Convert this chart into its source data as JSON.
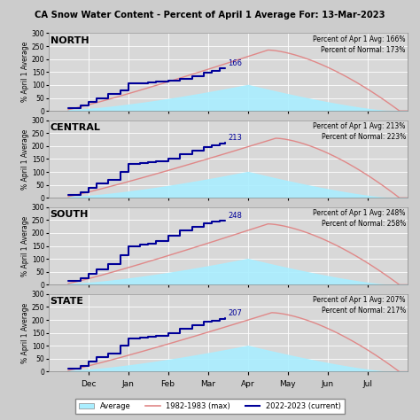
{
  "title": "CA Snow Water Content - Percent of April 1 Average For: 13-Mar-2023",
  "panels": [
    {
      "label": "NORTH",
      "apr1_avg": "166%",
      "normal": "173%",
      "current_value": 166
    },
    {
      "label": "CENTRAL",
      "apr1_avg": "213%",
      "normal": "223%",
      "current_value": 213
    },
    {
      "label": "SOUTH",
      "apr1_avg": "248%",
      "normal": "258%",
      "current_value": 248
    },
    {
      "label": "STATE",
      "apr1_avg": "207%",
      "normal": "217%",
      "current_value": 207
    }
  ],
  "bg_color": "#d8d8d8",
  "plot_bg_color": "#d4d4d4",
  "fill_color": "#aaeeff",
  "max_line_color": "#e08888",
  "current_line_color": "#000099",
  "ylabel": "% April 1 Average",
  "yticks": [
    0,
    50,
    100,
    150,
    200,
    250,
    300
  ],
  "ylim": [
    0,
    300
  ],
  "months": [
    "Dec",
    "Jan",
    "Feb",
    "Mar",
    "Apr",
    "May",
    "Jun",
    "Jul"
  ],
  "month_positions": [
    1,
    2,
    3,
    4,
    5,
    6,
    7,
    8
  ],
  "xlim": [
    0,
    9
  ],
  "current_end_x": 4.43
}
